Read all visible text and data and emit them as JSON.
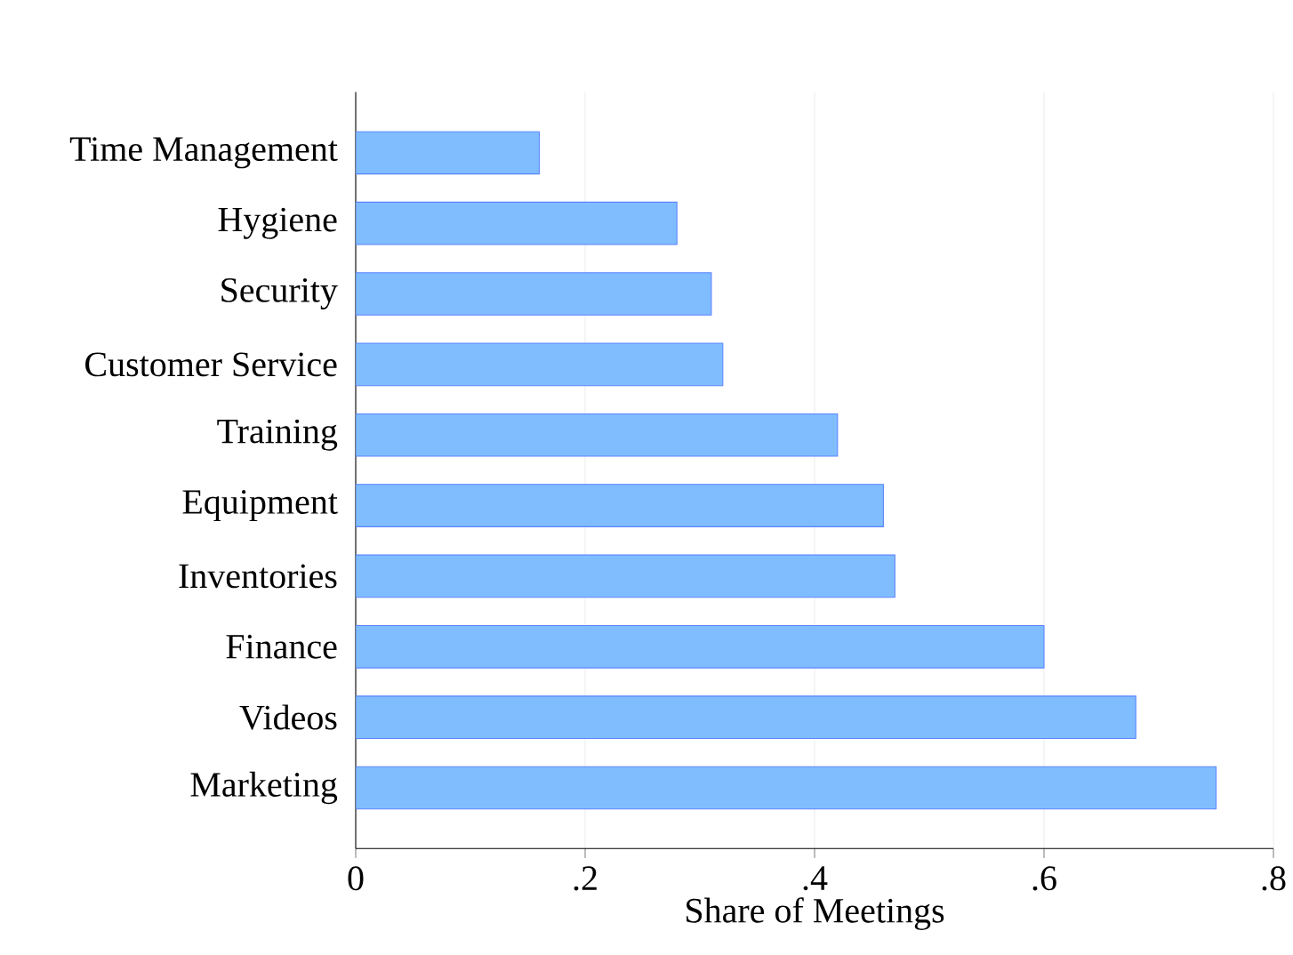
{
  "chart_data": {
    "type": "bar",
    "orientation": "horizontal",
    "xlabel": "Share of Meetings",
    "categories": [
      "Time Management",
      "Hygiene",
      "Security",
      "Customer Service",
      "Training",
      "Equipment",
      "Inventories",
      "Finance",
      "Videos",
      "Marketing"
    ],
    "values": [
      0.16,
      0.28,
      0.31,
      0.32,
      0.42,
      0.46,
      0.47,
      0.6,
      0.68,
      0.75
    ],
    "color": "#80bdff",
    "xlim": [
      0,
      0.8
    ],
    "xticks": [
      0,
      {
        "value": 0.2,
        "label": ".2"
      },
      {
        "value": 0.4,
        "label": ".4"
      },
      {
        "value": 0.6,
        "label": ".6"
      },
      {
        "value": 0.8,
        "label": ".8"
      }
    ],
    "grid": "x"
  }
}
